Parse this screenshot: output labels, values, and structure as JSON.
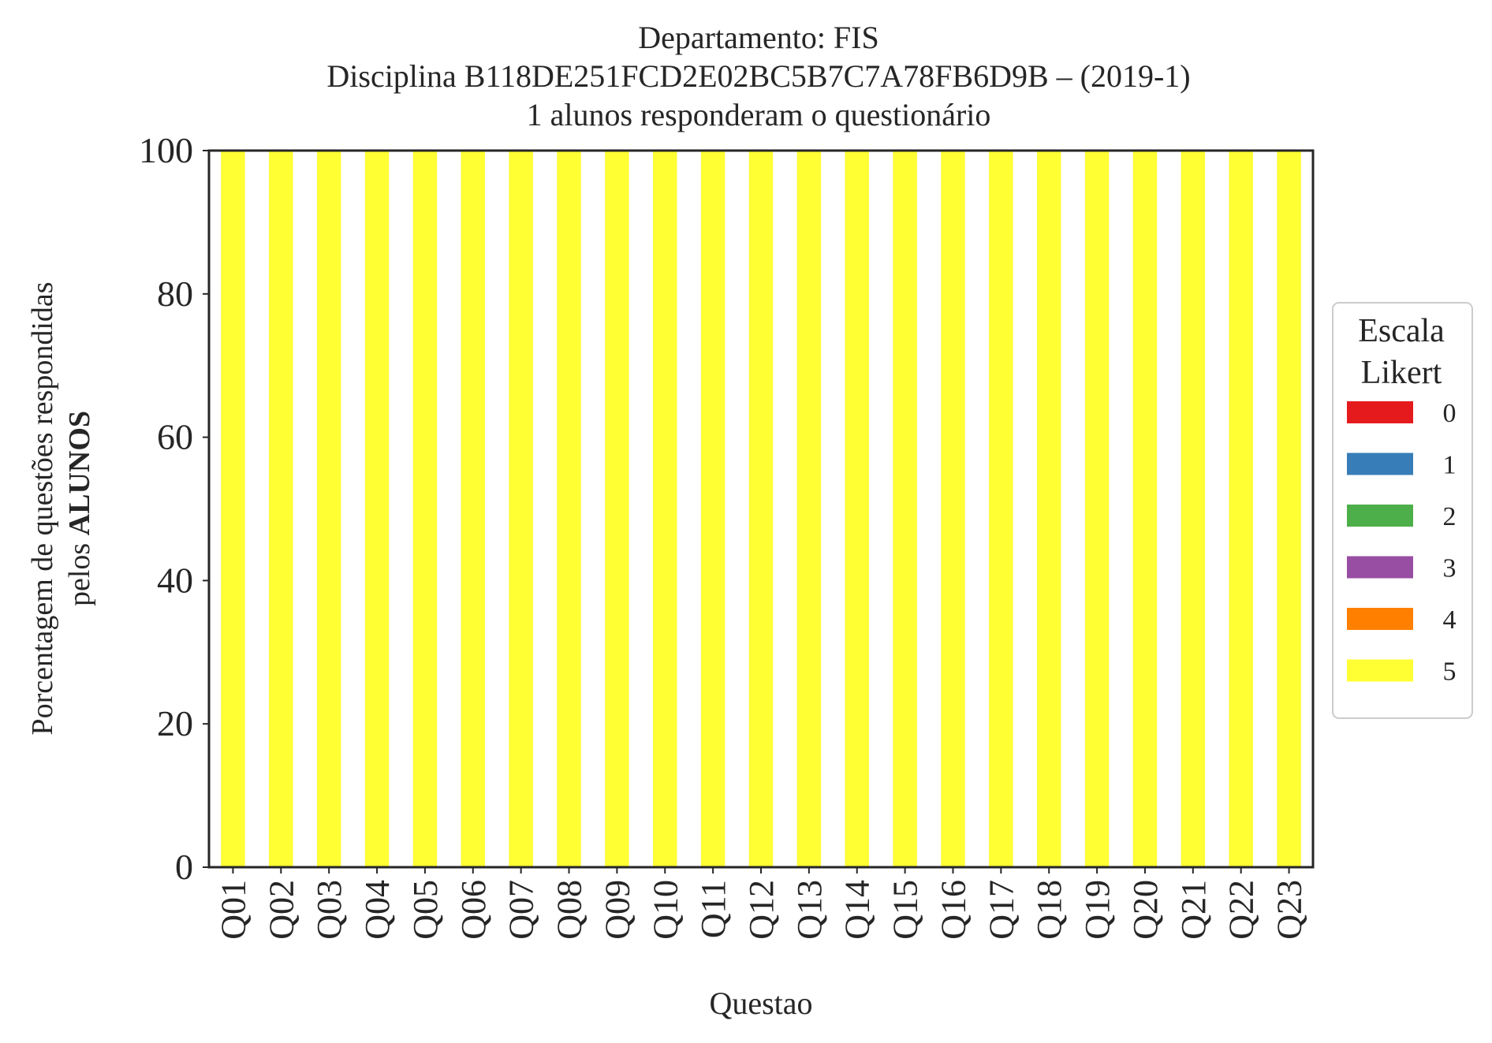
{
  "chart_data": {
    "type": "bar",
    "stacked": true,
    "title_lines": [
      "Departamento: FIS",
      "Disciplina B118DE251FCD2E02BC5B7C7A78FB6D9B – (2019-1)",
      "1 alunos responderam o questionário"
    ],
    "xlabel": "Questao",
    "ylabel_line1": "Porcentagem de questões respondidas",
    "ylabel_line2_prefix": "pelos ",
    "ylabel_line2_bold": "ALUNOS",
    "ylim": [
      0,
      100
    ],
    "yticks": [
      0,
      20,
      40,
      60,
      80,
      100
    ],
    "grid": false,
    "legend_position": "right",
    "categories": [
      "Q01",
      "Q02",
      "Q03",
      "Q04",
      "Q05",
      "Q06",
      "Q07",
      "Q08",
      "Q09",
      "Q10",
      "Q11",
      "Q12",
      "Q13",
      "Q14",
      "Q15",
      "Q16",
      "Q17",
      "Q18",
      "Q19",
      "Q20",
      "Q21",
      "Q22",
      "Q23"
    ],
    "series": [
      {
        "name": "0",
        "color": "#e41a1c",
        "values": [
          0,
          0,
          0,
          0,
          0,
          0,
          0,
          0,
          0,
          0,
          0,
          0,
          0,
          0,
          0,
          0,
          0,
          0,
          0,
          0,
          0,
          0,
          0
        ]
      },
      {
        "name": "1",
        "color": "#377eb8",
        "values": [
          0,
          0,
          0,
          0,
          0,
          0,
          0,
          0,
          0,
          0,
          0,
          0,
          0,
          0,
          0,
          0,
          0,
          0,
          0,
          0,
          0,
          0,
          0
        ]
      },
      {
        "name": "2",
        "color": "#4daf4a",
        "values": [
          0,
          0,
          0,
          0,
          0,
          0,
          0,
          0,
          0,
          0,
          0,
          0,
          0,
          0,
          0,
          0,
          0,
          0,
          0,
          0,
          0,
          0,
          0
        ]
      },
      {
        "name": "3",
        "color": "#984ea3",
        "values": [
          0,
          0,
          0,
          0,
          0,
          0,
          0,
          0,
          0,
          0,
          0,
          0,
          0,
          0,
          0,
          0,
          0,
          0,
          0,
          0,
          0,
          0,
          0
        ]
      },
      {
        "name": "4",
        "color": "#ff7f00",
        "values": [
          0,
          0,
          0,
          0,
          0,
          0,
          0,
          0,
          0,
          0,
          0,
          0,
          0,
          0,
          0,
          0,
          0,
          0,
          0,
          0,
          0,
          0,
          0
        ]
      },
      {
        "name": "5",
        "color": "#ffff33",
        "values": [
          100,
          100,
          100,
          100,
          100,
          100,
          100,
          100,
          100,
          100,
          100,
          100,
          100,
          100,
          100,
          100,
          100,
          100,
          100,
          100,
          100,
          100,
          100
        ]
      }
    ],
    "legend": {
      "title_lines": [
        "Escala",
        "Likert"
      ]
    }
  }
}
